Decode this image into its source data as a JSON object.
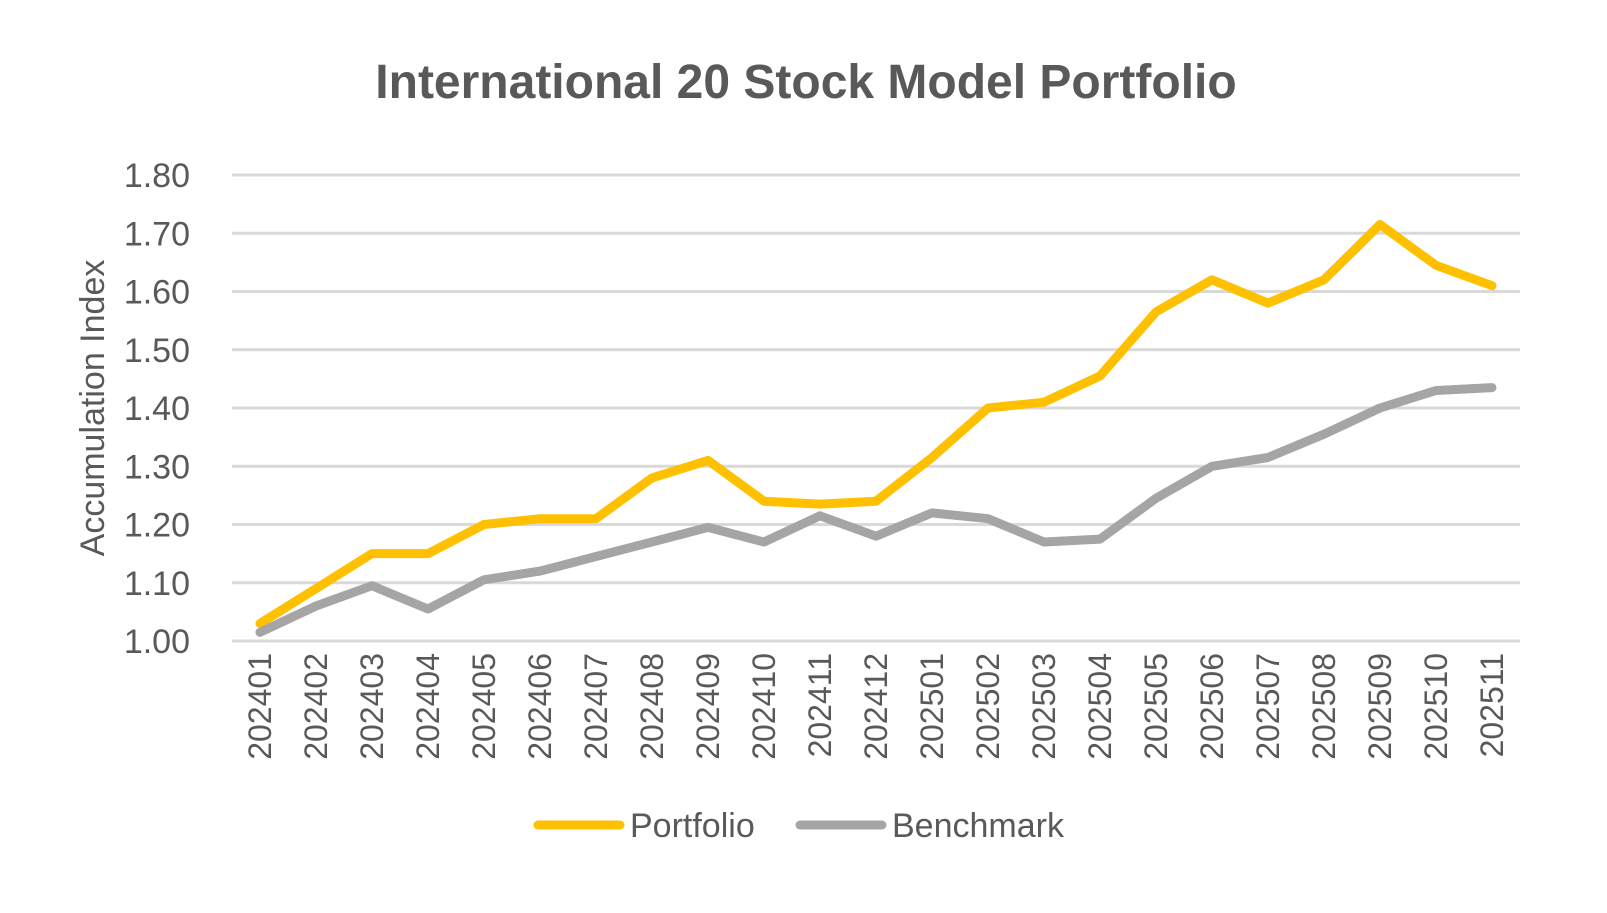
{
  "chart_data": {
    "type": "line",
    "title": "International 20 Stock Model Portfolio",
    "xlabel": "",
    "ylabel": "Accumulation Index",
    "ylim": [
      1.0,
      1.8
    ],
    "yticks": [
      "1.00",
      "1.10",
      "1.20",
      "1.30",
      "1.40",
      "1.50",
      "1.60",
      "1.70",
      "1.80"
    ],
    "grid": true,
    "legend_position": "bottom",
    "categories": [
      "202401",
      "202402",
      "202403",
      "202404",
      "202405",
      "202406",
      "202407",
      "202408",
      "202409",
      "202410",
      "202411",
      "202412",
      "202501",
      "202502",
      "202503",
      "202504",
      "202505",
      "202506",
      "202507",
      "202508",
      "202509",
      "202510",
      "202511"
    ],
    "series": [
      {
        "name": "Portfolio",
        "color": "#FFC000",
        "values": [
          1.03,
          1.09,
          1.15,
          1.15,
          1.2,
          1.21,
          1.21,
          1.28,
          1.31,
          1.24,
          1.235,
          1.24,
          1.315,
          1.4,
          1.41,
          1.455,
          1.565,
          1.62,
          1.58,
          1.62,
          1.715,
          1.645,
          1.61
        ]
      },
      {
        "name": "Benchmark",
        "color": "#A5A5A5",
        "values": [
          1.015,
          1.06,
          1.095,
          1.055,
          1.105,
          1.12,
          1.145,
          1.17,
          1.195,
          1.17,
          1.215,
          1.18,
          1.22,
          1.21,
          1.17,
          1.175,
          1.245,
          1.3,
          1.315,
          1.355,
          1.4,
          1.43,
          1.435
        ]
      }
    ]
  }
}
